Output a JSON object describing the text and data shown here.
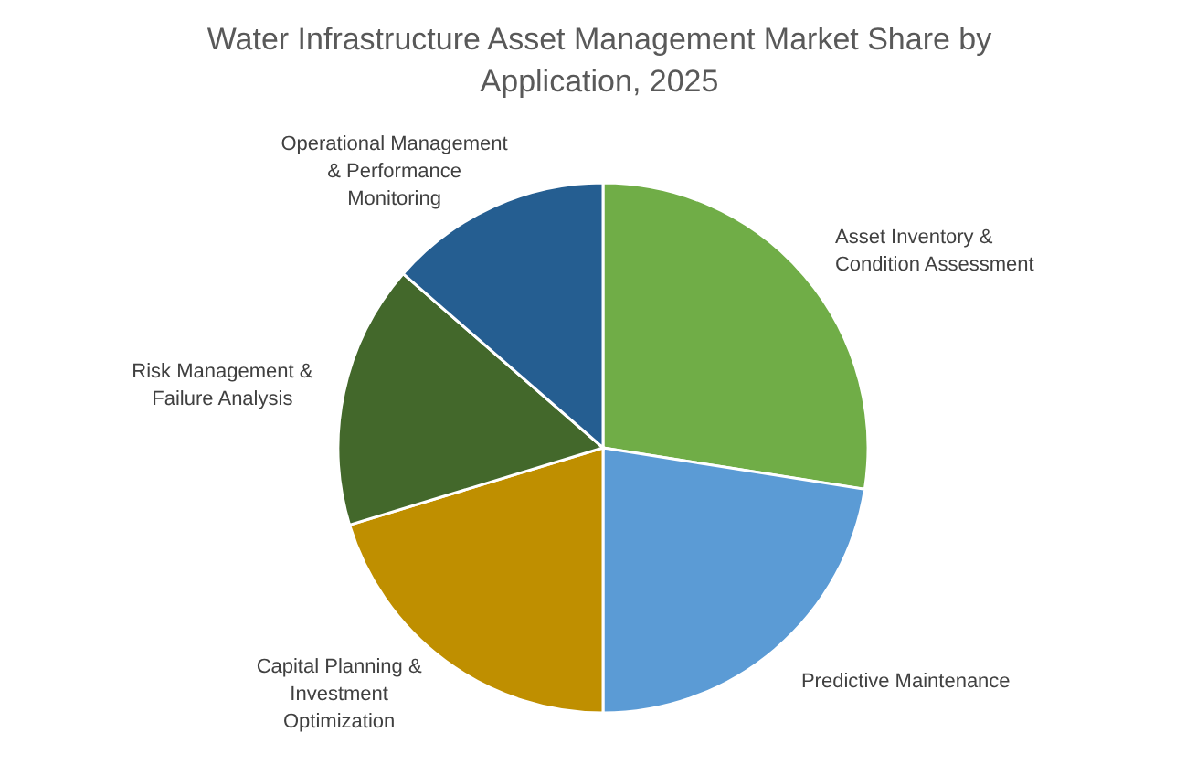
{
  "chart_data": {
    "type": "pie",
    "title": "Water Infrastructure Asset Management Market Share by Application, 2025",
    "categories": [
      "Asset Inventory & Condition Assessment",
      "Predictive Maintenance",
      "Capital Planning & Investment Optimization",
      "Risk Management & Failure Analysis",
      "Operational Management & Performance Monitoring"
    ],
    "values": [
      27.5,
      22.5,
      20.3,
      16.1,
      13.6
    ],
    "colors": [
      "#70ad47",
      "#5b9bd5",
      "#bf8f00",
      "#43682b",
      "#255e91"
    ]
  }
}
